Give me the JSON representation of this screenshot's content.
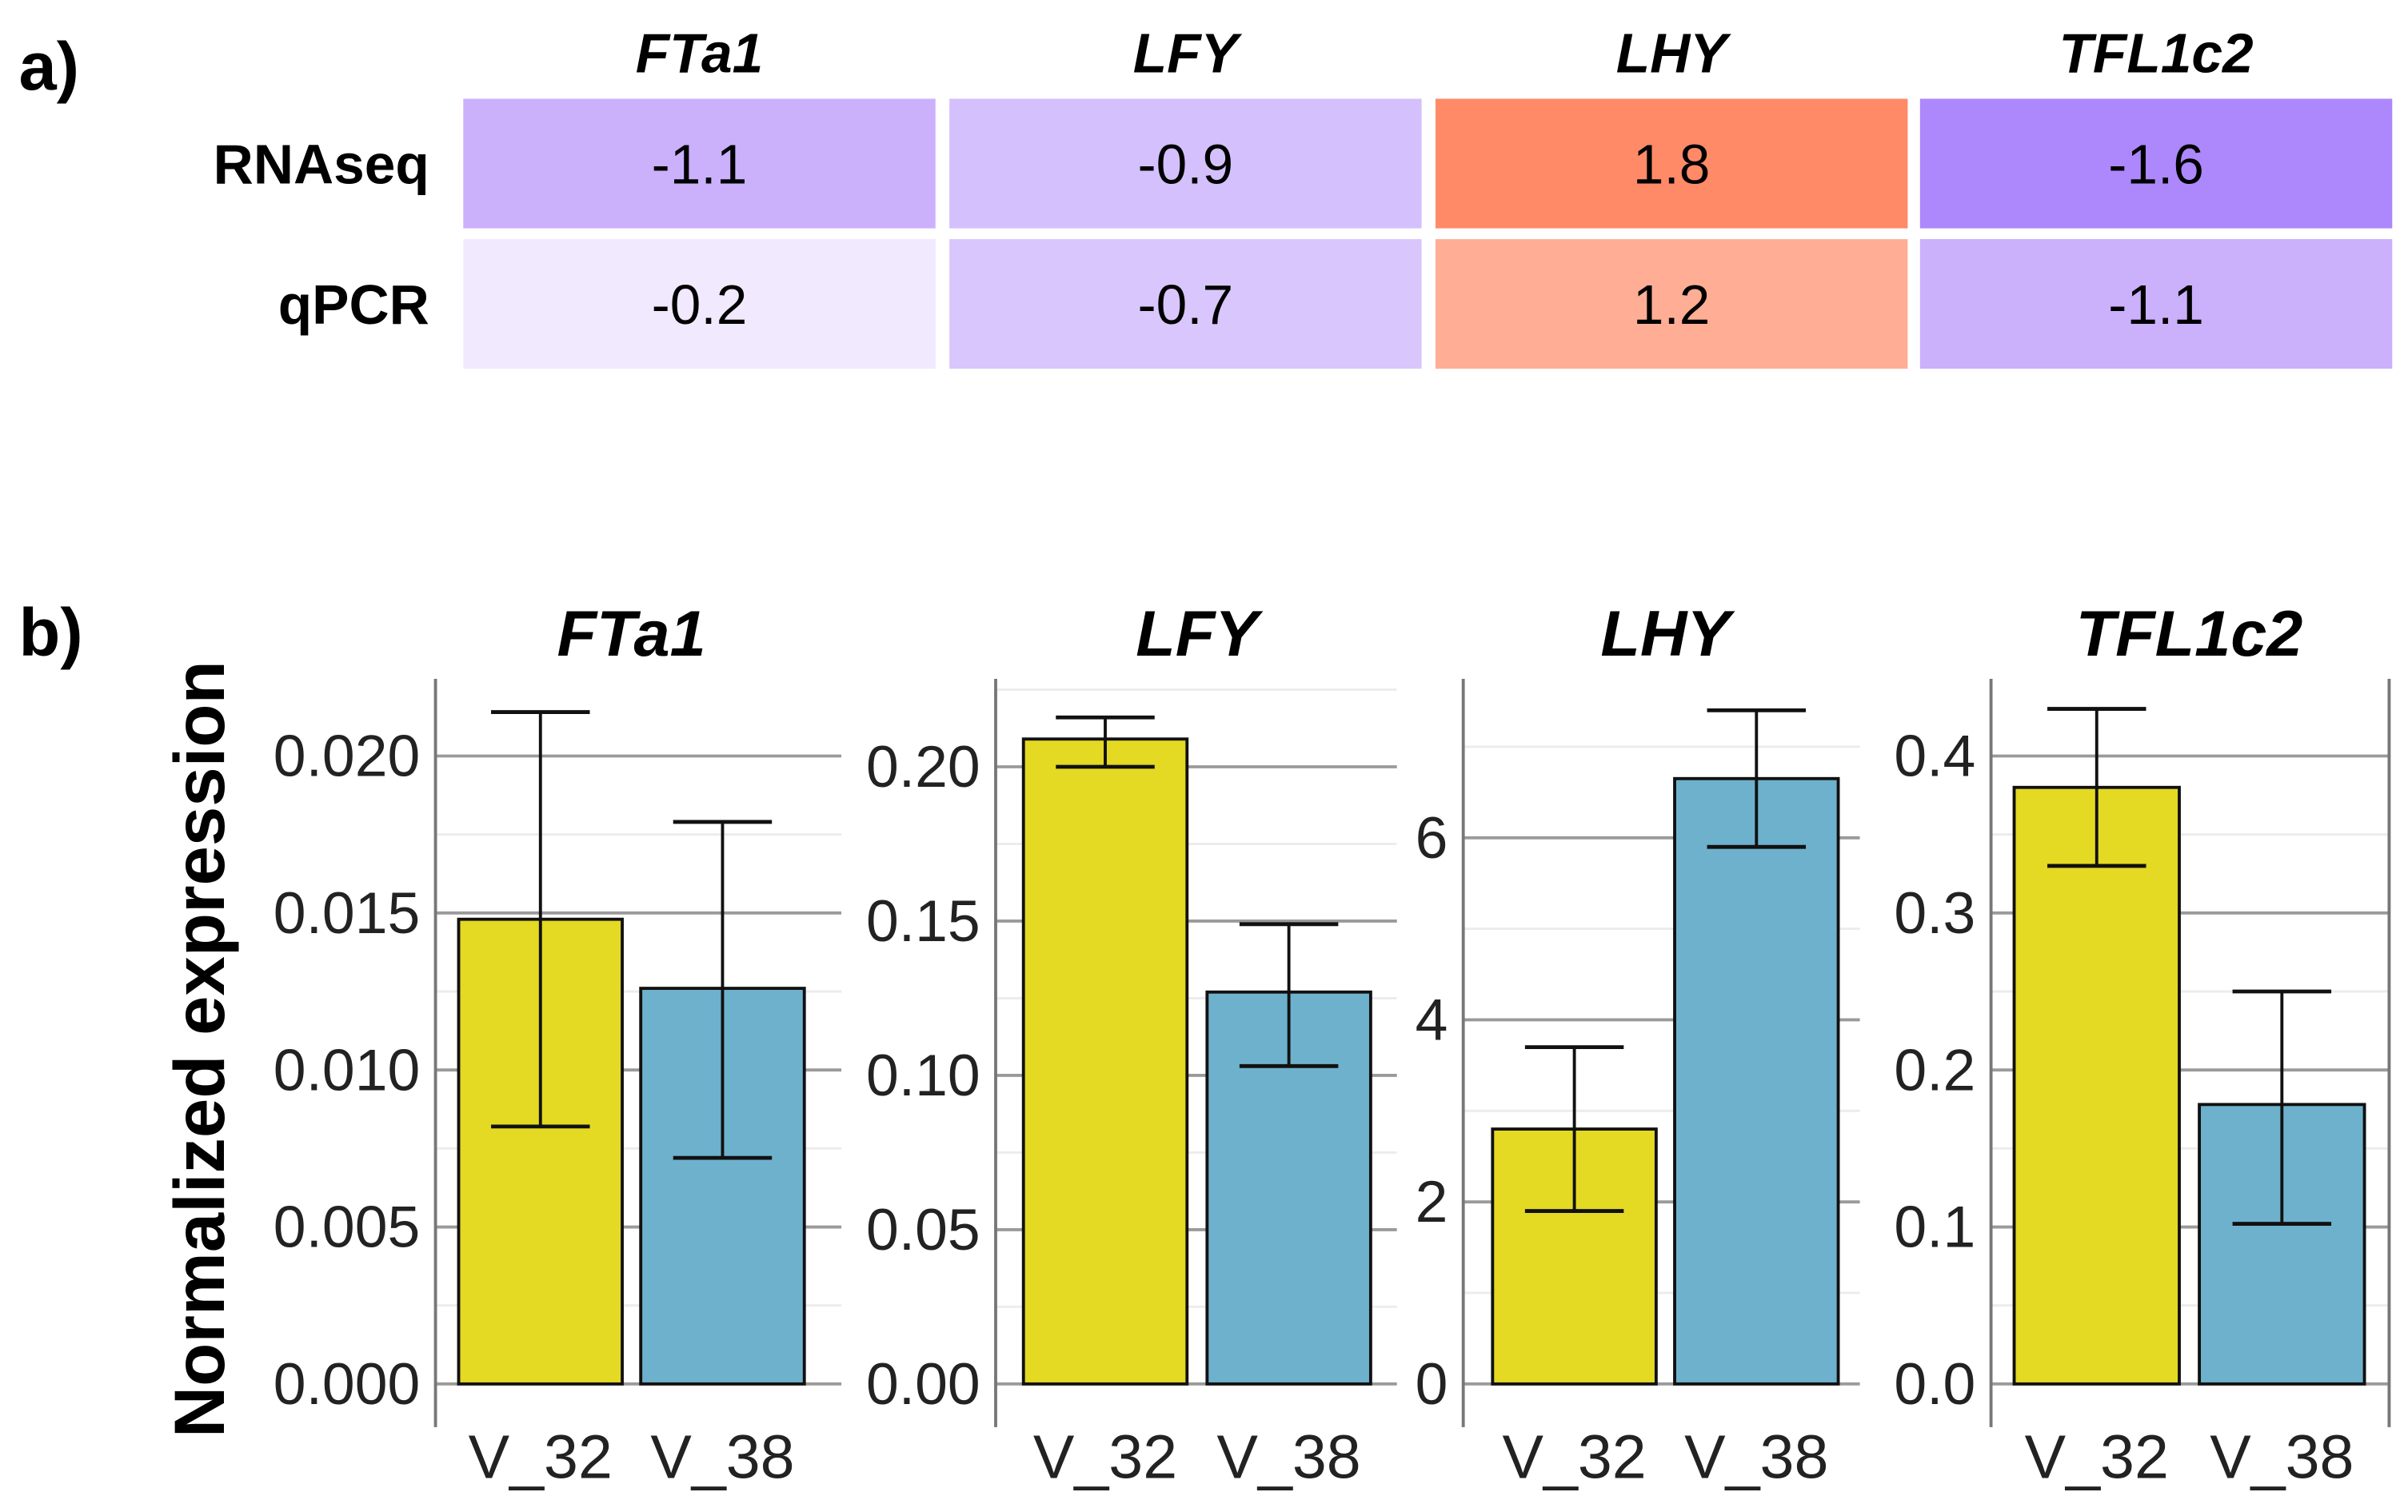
{
  "panel_labels": {
    "a": "a)",
    "b": "b)"
  },
  "chart_data": [
    {
      "type": "heatmap",
      "title": "",
      "columns": [
        "FTa1",
        "LFY",
        "LHY",
        "TFL1c2"
      ],
      "rows": [
        {
          "label": "RNAseq",
          "values": [
            "-1.1",
            "-0.9",
            "1.8",
            "-1.6"
          ],
          "colors": [
            "#cbb0fc",
            "#d4c0fc",
            "#ff8a68",
            "#ad87fc"
          ]
        },
        {
          "label": "qPCR",
          "values": [
            "-0.2",
            "-0.7",
            "1.2",
            "-1.1"
          ],
          "colors": [
            "#f1e9fd",
            "#d9c6fc",
            "#ffae95",
            "#cbb0fc"
          ]
        }
      ]
    },
    {
      "type": "bar",
      "ylabel": "Normalized expression",
      "categories": [
        "V_32",
        "V_38"
      ],
      "colors": [
        "#e4d923",
        "#6eb1cd"
      ],
      "panels": [
        {
          "title": "FTa1",
          "ylim": [
            0,
            0.0215
          ],
          "ticks": [
            "0.000",
            "0.005",
            "0.010",
            "0.015",
            "0.020"
          ],
          "tick_values": [
            0,
            0.005,
            0.01,
            0.015,
            0.02
          ],
          "values": [
            0.0148,
            0.0126
          ],
          "err_low": [
            0.0082,
            0.0072
          ],
          "err_high": [
            0.0214,
            0.0179
          ]
        },
        {
          "title": "LFY",
          "ylim": [
            0,
            0.215
          ],
          "ticks": [
            "0.00",
            "0.05",
            "0.10",
            "0.15",
            "0.20"
          ],
          "tick_values": [
            0,
            0.05,
            0.1,
            0.15,
            0.2
          ],
          "values": [
            0.209,
            0.127
          ],
          "err_low": [
            0.2,
            0.103
          ],
          "err_high": [
            0.216,
            0.149
          ]
        },
        {
          "title": "LHY",
          "ylim": [
            0,
            7.4
          ],
          "ticks": [
            "0",
            "2",
            "4",
            "6"
          ],
          "tick_values": [
            0,
            2,
            4,
            6
          ],
          "values": [
            2.8,
            6.65
          ],
          "err_low": [
            1.9,
            5.9
          ],
          "err_high": [
            3.7,
            7.4
          ]
        },
        {
          "title": "TFL1c2",
          "ylim": [
            0,
            0.43
          ],
          "ticks": [
            "0.0",
            "0.1",
            "0.2",
            "0.3",
            "0.4"
          ],
          "tick_values": [
            0,
            0.1,
            0.2,
            0.3,
            0.4
          ],
          "values": [
            0.38,
            0.178
          ],
          "err_low": [
            0.33,
            0.102
          ],
          "err_high": [
            0.43,
            0.25
          ]
        }
      ]
    }
  ]
}
